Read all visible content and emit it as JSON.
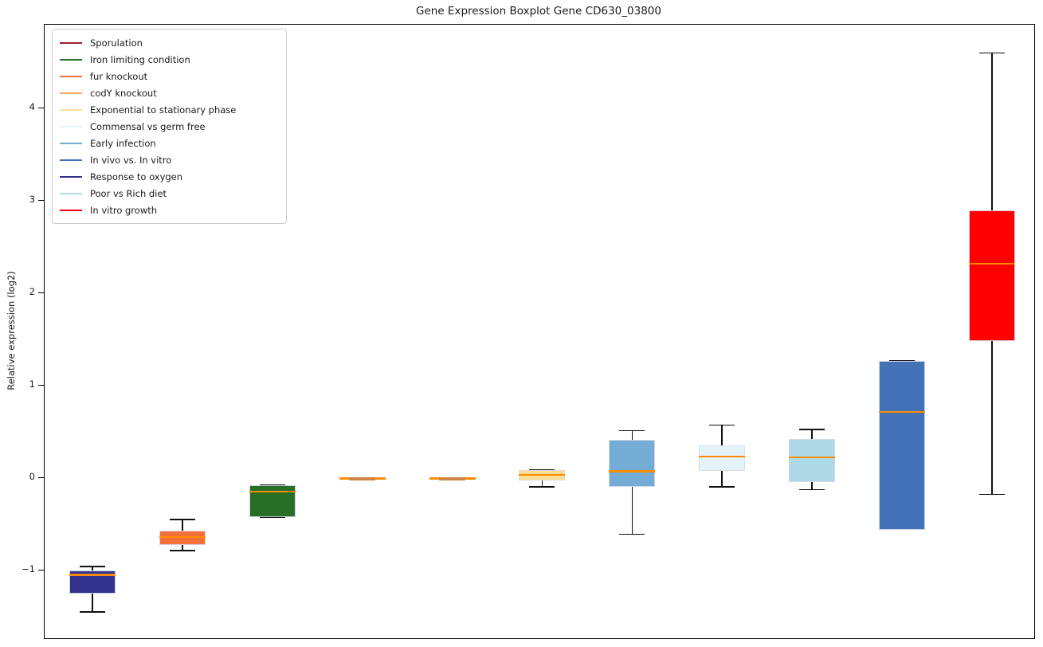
{
  "title": "Gene Expression Boxplot Gene CD630_03800",
  "ylabel": "Relative expression (log2)",
  "legend": {
    "items": [
      {
        "label": "Sporulation",
        "color": "#9A1B30"
      },
      {
        "label": "Iron limiting condition",
        "color": "#276E27"
      },
      {
        "label": "fur knockout",
        "color": "#F4703A"
      },
      {
        "label": "codY knockout",
        "color": "#FAA85F"
      },
      {
        "label": "Exponential to stationary phase",
        "color": "#FBDF96"
      },
      {
        "label": "Commensal vs germ free",
        "color": "#E4F3F9"
      },
      {
        "label": "Early infection",
        "color": "#74ACD5"
      },
      {
        "label": "In vivo vs. In vitro",
        "color": "#4472B8"
      },
      {
        "label": "Response to oxygen",
        "color": "#32328C"
      },
      {
        "label": "Poor vs Rich diet",
        "color": "#ADD8E6"
      },
      {
        "label": "In vitro growth",
        "color": "#FF0000"
      }
    ]
  },
  "chart_data": {
    "type": "boxplot",
    "title": "Gene Expression Boxplot Gene CD630_03800",
    "xlabel": "",
    "ylabel": "Relative expression (log2)",
    "ylim": [
      -1.725,
      4.905
    ],
    "grid": false,
    "legend_position": "upper left",
    "x_tick_labels": [],
    "yticks": [
      {
        "value": 4,
        "label": "4"
      },
      {
        "value": 3,
        "label": "3"
      },
      {
        "value": 2,
        "label": "2"
      },
      {
        "value": 1,
        "label": "1"
      },
      {
        "value": 0,
        "label": "0"
      },
      {
        "value": -1,
        "label": "−1"
      }
    ],
    "style": {
      "median_color": "#FF8C00",
      "whisker_color": "#101010",
      "flat_box_center_color": "#CE8546"
    },
    "series": [
      {
        "name": "Response to oxygen",
        "color": "#32328C",
        "whisker_low": -1.44,
        "q1": -1.24,
        "median": -1.04,
        "q3": -0.99,
        "whisker_high": -0.95
      },
      {
        "name": "fur knockout",
        "color": "#F4703A",
        "whisker_low": -0.78,
        "q1": -0.72,
        "median": -0.63,
        "q3": -0.56,
        "whisker_high": -0.44
      },
      {
        "name": "Iron limiting condition",
        "color": "#276E27",
        "whisker_low": -0.42,
        "q1": -0.42,
        "median": -0.14,
        "q3": -0.07,
        "whisker_high": -0.07
      },
      {
        "name": "codY knockout",
        "color": "#FAA85F",
        "whisker_low": -0.01,
        "q1": -0.01,
        "median": 0.0,
        "q3": 0.01,
        "whisker_high": 0.01
      },
      {
        "name": "Sporulation",
        "color": "#9A1B30",
        "whisker_low": -0.01,
        "q1": -0.01,
        "median": 0.0,
        "q3": 0.005,
        "whisker_high": 0.005
      },
      {
        "name": "Exponential to stationary phase",
        "color": "#FBDF96",
        "whisker_low": -0.09,
        "q1": -0.02,
        "median": 0.04,
        "q3": 0.09,
        "whisker_high": 0.09
      },
      {
        "name": "Early infection",
        "color": "#74ACD5",
        "whisker_low": -0.6,
        "q1": -0.09,
        "median": 0.08,
        "q3": 0.42,
        "whisker_high": 0.52
      },
      {
        "name": "Commensal vs germ free",
        "color": "#E4F3F9",
        "whisker_low": -0.09,
        "q1": 0.08,
        "median": 0.24,
        "q3": 0.36,
        "whisker_high": 0.58
      },
      {
        "name": "Poor vs Rich diet",
        "color": "#ADD8E6",
        "whisker_low": -0.12,
        "q1": -0.04,
        "median": 0.23,
        "q3": 0.43,
        "whisker_high": 0.53
      },
      {
        "name": "In vivo vs. In vitro",
        "color": "#4472B8",
        "whisker_low": -0.55,
        "q1": -0.55,
        "median": 0.72,
        "q3": 1.27,
        "whisker_high": 1.27
      },
      {
        "name": "In vitro growth",
        "color": "#FF0000",
        "whisker_low": -0.17,
        "q1": 1.49,
        "median": 2.32,
        "q3": 2.9,
        "whisker_high": 4.6
      }
    ]
  }
}
